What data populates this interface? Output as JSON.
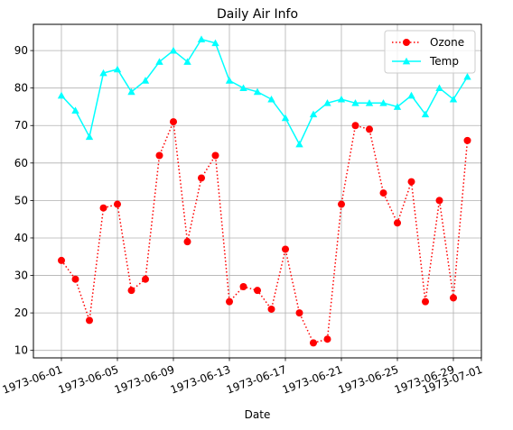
{
  "chart_data": {
    "type": "line",
    "title": "Daily Air Info",
    "xlabel": "Date",
    "ylabel": "",
    "x": [
      "1973-06-01",
      "1973-06-02",
      "1973-06-03",
      "1973-06-04",
      "1973-06-05",
      "1973-06-06",
      "1973-06-07",
      "1973-06-08",
      "1973-06-09",
      "1973-06-10",
      "1973-06-11",
      "1973-06-12",
      "1973-06-13",
      "1973-06-14",
      "1973-06-15",
      "1973-06-16",
      "1973-06-17",
      "1973-06-18",
      "1973-06-19",
      "1973-06-20",
      "1973-06-21",
      "1973-06-22",
      "1973-06-23",
      "1973-06-24",
      "1973-06-25",
      "1973-06-26",
      "1973-06-27",
      "1973-06-28",
      "1973-06-29",
      "1973-06-30"
    ],
    "series": [
      {
        "name": "Ozone",
        "color": "#ff0000",
        "line_style": "dotted",
        "marker": "circle",
        "values": [
          34,
          29,
          18,
          48,
          49,
          26,
          29,
          62,
          71,
          39,
          56,
          62,
          23,
          27,
          26,
          21,
          37,
          20,
          12,
          13,
          49,
          70,
          69,
          52,
          44,
          55,
          23,
          50,
          24,
          66
        ]
      },
      {
        "name": "Temp",
        "color": "#00ffff",
        "line_style": "solid",
        "marker": "triangle",
        "values": [
          78,
          74,
          67,
          84,
          85,
          79,
          82,
          87,
          90,
          87,
          93,
          92,
          82,
          80,
          79,
          77,
          72,
          65,
          73,
          76,
          77,
          76,
          76,
          76,
          75,
          78,
          73,
          80,
          77,
          83
        ]
      }
    ],
    "xticks": [
      "1973-06-01",
      "1973-06-05",
      "1973-06-09",
      "1973-06-13",
      "1973-06-17",
      "1973-06-21",
      "1973-06-25",
      "1973-06-29",
      "1973-07-01"
    ],
    "yticks": [
      10,
      20,
      30,
      40,
      50,
      60,
      70,
      80,
      90
    ],
    "xlim": [
      "1973-05-30",
      "1973-07-01"
    ],
    "ylim": [
      8,
      97
    ],
    "grid": true,
    "legend_position": "top-right"
  }
}
